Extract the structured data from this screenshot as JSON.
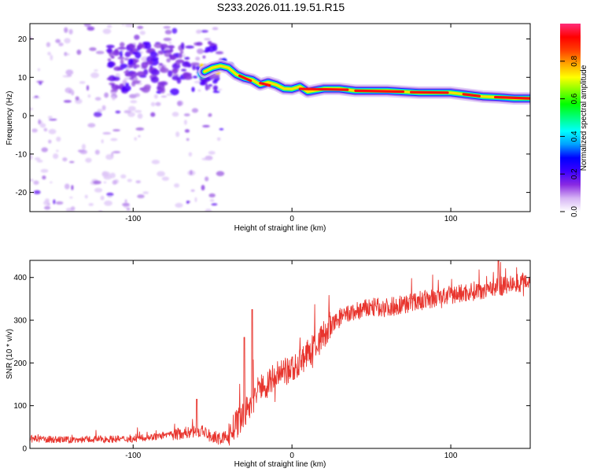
{
  "title": "S233.2026.011.19.51.R15",
  "chart_data": [
    {
      "type": "heatmap",
      "title": "S233.2026.011.19.51.R15",
      "xlabel": "Height of straight line (km)",
      "ylabel": "Frequency (Hz)",
      "xlim": [
        -165,
        150
      ],
      "ylim": [
        -25,
        24
      ],
      "xticks": [
        -100,
        0,
        100
      ],
      "yticks": [
        -20,
        -10,
        0,
        10,
        20
      ],
      "ridge": {
        "x": [
          -55,
          -50,
          -45,
          -40,
          -35,
          -30,
          -25,
          -20,
          -15,
          -10,
          -5,
          0,
          5,
          10,
          20,
          30,
          40,
          60,
          80,
          100,
          110,
          120,
          130,
          140,
          150
        ],
        "freq": [
          11.5,
          12.5,
          13.0,
          12.0,
          11.0,
          9.5,
          9.0,
          8.5,
          8.0,
          7.5,
          7.0,
          6.5,
          7.0,
          7.0,
          7.0,
          7.0,
          6.5,
          6.5,
          6.0,
          6.0,
          5.5,
          5.0,
          4.8,
          4.5,
          4.5
        ]
      },
      "colorbar": {
        "label": "Normalized spectral amplitude",
        "range": [
          0,
          1
        ],
        "ticks": [
          "0.0",
          "0.2",
          "0.4",
          "0.6",
          "0.8"
        ],
        "colors": [
          "#ffffff",
          "#d6b4f4",
          "#8a2be2",
          "#3c00ff",
          "#0000ff",
          "#00a0ff",
          "#00ffff",
          "#00ff7f",
          "#00ff00",
          "#7fff00",
          "#ffff00",
          "#ffa500",
          "#ff4000",
          "#ff0000",
          "#ff2d7a"
        ]
      }
    },
    {
      "type": "line",
      "xlabel": "Height of straight line (km)",
      "ylabel": "SNR (10 * v/v)",
      "xlim": [
        -165,
        150
      ],
      "ylim": [
        0,
        440
      ],
      "xticks": [
        -100,
        0,
        100
      ],
      "yticks": [
        0,
        100,
        200,
        300,
        400
      ],
      "color": "#e8352e",
      "series": [
        {
          "name": "SNR",
          "x": [
            -165,
            -140,
            -120,
            -100,
            -80,
            -70,
            -60,
            -55,
            -50,
            -45,
            -40,
            -35,
            -30,
            -25,
            -20,
            -15,
            -10,
            -5,
            0,
            5,
            10,
            15,
            20,
            25,
            30,
            40,
            50,
            60,
            80,
            100,
            120,
            140,
            150
          ],
          "values": [
            22,
            20,
            22,
            22,
            30,
            35,
            40,
            38,
            25,
            22,
            30,
            55,
            80,
            110,
            140,
            155,
            165,
            175,
            185,
            205,
            220,
            240,
            265,
            285,
            305,
            320,
            330,
            330,
            345,
            358,
            372,
            385,
            395
          ]
        }
      ],
      "spikes": [
        {
          "x": -25,
          "value": 325
        },
        {
          "x": -30,
          "value": 260
        },
        {
          "x": -60,
          "value": 115
        },
        {
          "x": 130,
          "value": 440
        }
      ]
    }
  ]
}
